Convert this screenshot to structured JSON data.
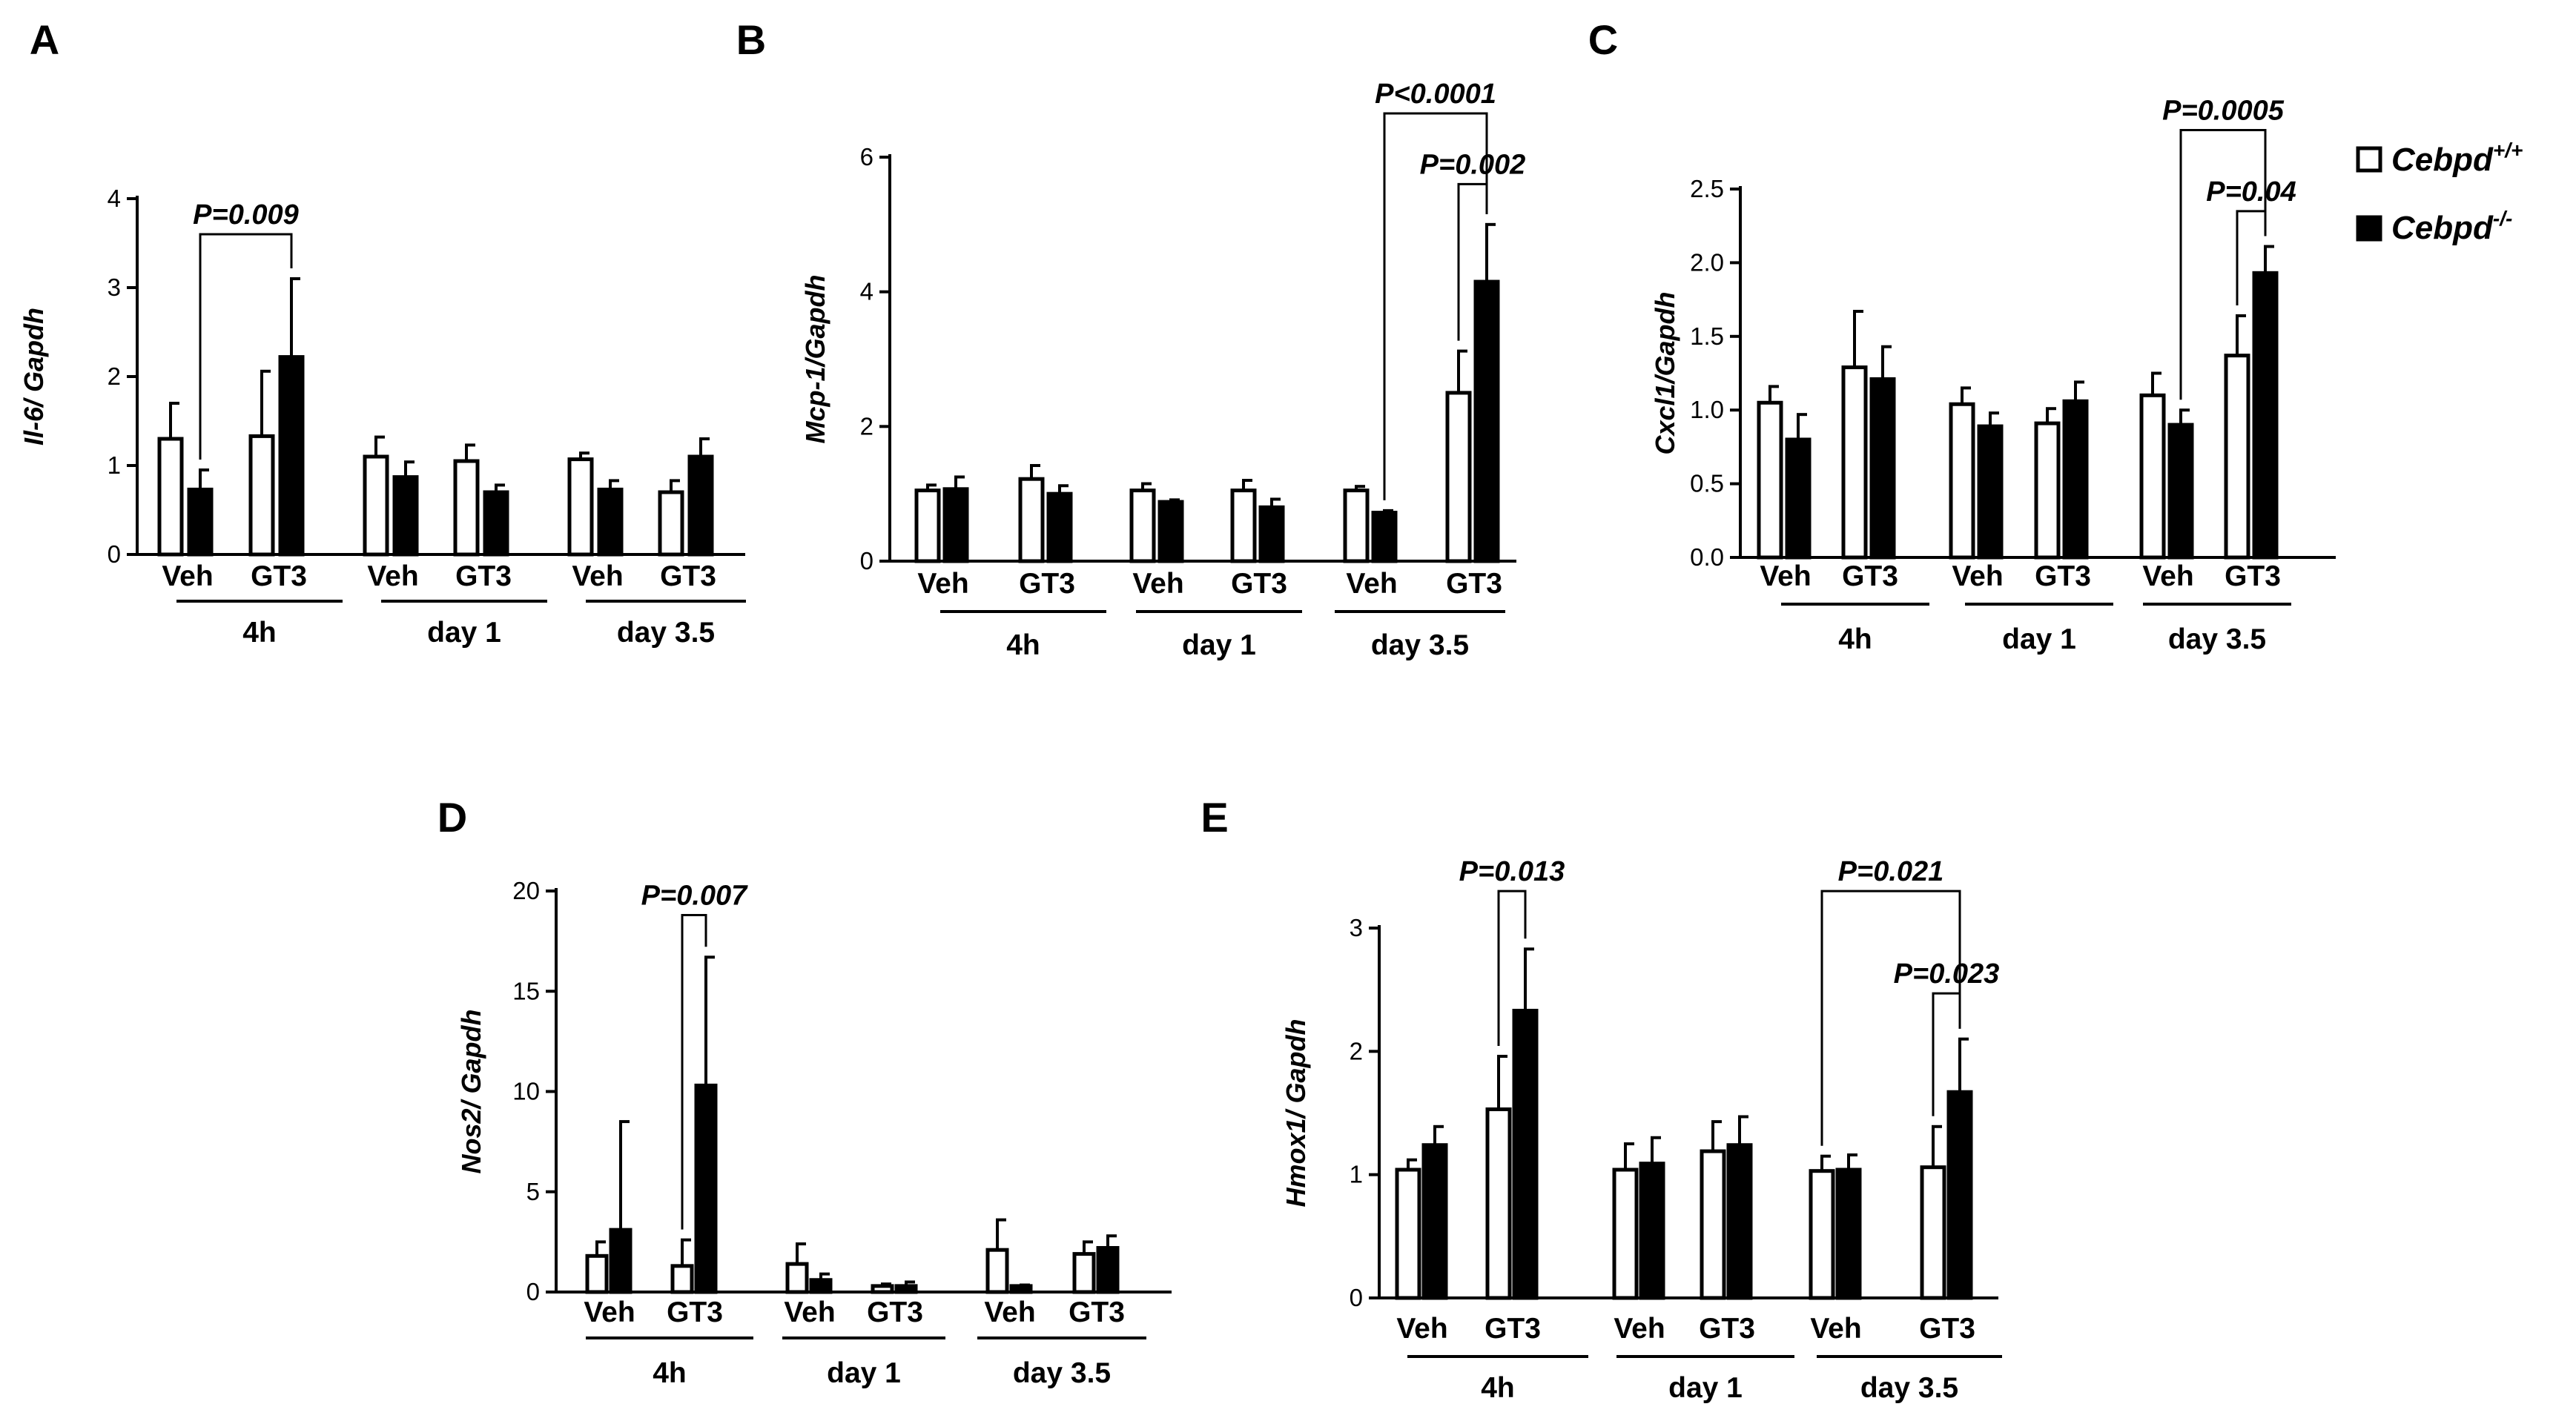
{
  "legend": {
    "entries": [
      {
        "name": "Cebpd",
        "superscript": "+/+",
        "fill": "#ffffff"
      },
      {
        "name": "Cebpd",
        "superscript": "-/-",
        "fill": "#000000"
      }
    ]
  },
  "chart_data": [
    {
      "panel": "A",
      "type": "bar",
      "ylabel": "Il-6/ Gapdh",
      "ylim": [
        0,
        4
      ],
      "yticks": [
        "0",
        "1",
        "2",
        "3",
        "4"
      ],
      "categories": [
        "Veh",
        "GT3",
        "Veh",
        "GT3",
        "Veh",
        "GT3"
      ],
      "groups": [
        "4h",
        "day 1",
        "day 3.5"
      ],
      "series": [
        {
          "name": "Cebpd+/+",
          "values": [
            1.3,
            1.33,
            1.1,
            1.05,
            1.07,
            0.7
          ],
          "errors": [
            0.4,
            0.73,
            0.22,
            0.18,
            0.07,
            0.13
          ]
        },
        {
          "name": "Cebpd-/-",
          "values": [
            0.73,
            2.22,
            0.87,
            0.7,
            0.73,
            1.1
          ],
          "errors": [
            0.22,
            0.88,
            0.17,
            0.08,
            0.1,
            0.2
          ]
        }
      ],
      "annotations": [
        {
          "text": "P=0.009",
          "from": [
            0,
            "Cebpd-/-"
          ],
          "to": [
            1,
            "Cebpd-/-"
          ],
          "level": 3.6
        }
      ]
    },
    {
      "panel": "B",
      "type": "bar",
      "ylabel": "Mcp-1/Gapdh",
      "ylim": [
        0,
        6
      ],
      "yticks": [
        "0",
        "2",
        "4",
        "6"
      ],
      "categories": [
        "Veh",
        "GT3",
        "Veh",
        "GT3",
        "Veh",
        "GT3"
      ],
      "groups": [
        "4h",
        "day 1",
        "day 3.5"
      ],
      "series": [
        {
          "name": "Cebpd+/+",
          "values": [
            1.05,
            1.22,
            1.05,
            1.05,
            1.05,
            2.5
          ],
          "errors": [
            0.08,
            0.2,
            0.1,
            0.15,
            0.06,
            0.62
          ]
        },
        {
          "name": "Cebpd-/-",
          "values": [
            1.07,
            1.0,
            0.88,
            0.8,
            0.72,
            4.15
          ],
          "errors": [
            0.18,
            0.12,
            0.03,
            0.12,
            0.03,
            0.85
          ]
        }
      ],
      "annotations": [
        {
          "text": "P<0.0001",
          "from": [
            4,
            "Cebpd-/-"
          ],
          "to": [
            5,
            "Cebpd-/-"
          ],
          "level": 6.65
        },
        {
          "text": "P=0.002",
          "from": [
            5,
            "Cebpd+/+"
          ],
          "to": [
            5,
            "Cebpd-/-"
          ],
          "level": 5.6
        }
      ]
    },
    {
      "panel": "C",
      "type": "bar",
      "ylabel": "Cxcl1/Gapdh",
      "ylim": [
        0,
        2.5
      ],
      "yticks": [
        "0.0",
        "0.5",
        "1.0",
        "1.5",
        "2.0",
        "2.5"
      ],
      "categories": [
        "Veh",
        "GT3",
        "Veh",
        "GT3",
        "Veh",
        "GT3"
      ],
      "groups": [
        "4h",
        "day 1",
        "day 3.5"
      ],
      "series": [
        {
          "name": "Cebpd+/+",
          "values": [
            1.05,
            1.29,
            1.04,
            0.91,
            1.1,
            1.37
          ],
          "errors": [
            0.11,
            0.38,
            0.11,
            0.1,
            0.15,
            0.27
          ]
        },
        {
          "name": "Cebpd-/-",
          "values": [
            0.8,
            1.21,
            0.89,
            1.06,
            0.9,
            1.93
          ],
          "errors": [
            0.17,
            0.22,
            0.09,
            0.13,
            0.1,
            0.18
          ]
        }
      ],
      "annotations": [
        {
          "text": "P=0.0005",
          "from": [
            4,
            "Cebpd-/-"
          ],
          "to": [
            5,
            "Cebpd-/-"
          ],
          "level": 2.9
        },
        {
          "text": "P=0.04",
          "from": [
            5,
            "Cebpd+/+"
          ],
          "to": [
            5,
            "Cebpd-/-"
          ],
          "level": 2.35
        }
      ]
    },
    {
      "panel": "D",
      "type": "bar",
      "ylabel": "Nos2/ Gapdh",
      "ylim": [
        0,
        20
      ],
      "yticks": [
        "0",
        "5",
        "10",
        "15",
        "20"
      ],
      "categories": [
        "Veh",
        "GT3",
        "Veh",
        "GT3",
        "Veh",
        "GT3"
      ],
      "groups": [
        "4h",
        "day 1",
        "day 3.5"
      ],
      "series": [
        {
          "name": "Cebpd+/+",
          "values": [
            1.8,
            1.3,
            1.4,
            0.3,
            2.1,
            1.9
          ],
          "errors": [
            0.7,
            1.3,
            1.0,
            0.1,
            1.5,
            0.6
          ]
        },
        {
          "name": "Cebpd-/-",
          "values": [
            3.1,
            10.3,
            0.6,
            0.3,
            0.3,
            2.2
          ],
          "errors": [
            5.4,
            6.4,
            0.3,
            0.2,
            0.05,
            0.6
          ]
        }
      ],
      "annotations": [
        {
          "text": "P=0.007",
          "from": [
            1,
            "Cebpd+/+"
          ],
          "to": [
            1,
            "Cebpd-/-"
          ],
          "level": 18.8
        }
      ]
    },
    {
      "panel": "E",
      "type": "bar",
      "ylabel": "Hmox1/ Gapdh",
      "ylim": [
        0,
        3
      ],
      "yticks": [
        "0",
        "1",
        "2",
        "3"
      ],
      "categories": [
        "Veh",
        "GT3",
        "Veh",
        "GT3",
        "Veh",
        "GT3"
      ],
      "groups": [
        "4h",
        "day 1",
        "day 3.5"
      ],
      "series": [
        {
          "name": "Cebpd+/+",
          "values": [
            1.04,
            1.53,
            1.04,
            1.19,
            1.03,
            1.06
          ],
          "errors": [
            0.08,
            0.43,
            0.21,
            0.24,
            0.12,
            0.33
          ]
        },
        {
          "name": "Cebpd-/-",
          "values": [
            1.24,
            2.33,
            1.09,
            1.24,
            1.04,
            1.67
          ],
          "errors": [
            0.15,
            0.5,
            0.21,
            0.23,
            0.12,
            0.43
          ]
        }
      ],
      "annotations": [
        {
          "text": "P=0.013",
          "from": [
            1,
            "Cebpd+/+"
          ],
          "to": [
            1,
            "Cebpd-/-"
          ],
          "level": 3.3
        },
        {
          "text": "P=0.021",
          "from": [
            4,
            "Cebpd+/+"
          ],
          "to": [
            5,
            "Cebpd-/-"
          ],
          "level": 3.3
        },
        {
          "text": "P=0.023",
          "from": [
            5,
            "Cebpd+/+"
          ],
          "to": [
            5,
            "Cebpd-/-"
          ],
          "level": 2.47
        }
      ]
    }
  ]
}
